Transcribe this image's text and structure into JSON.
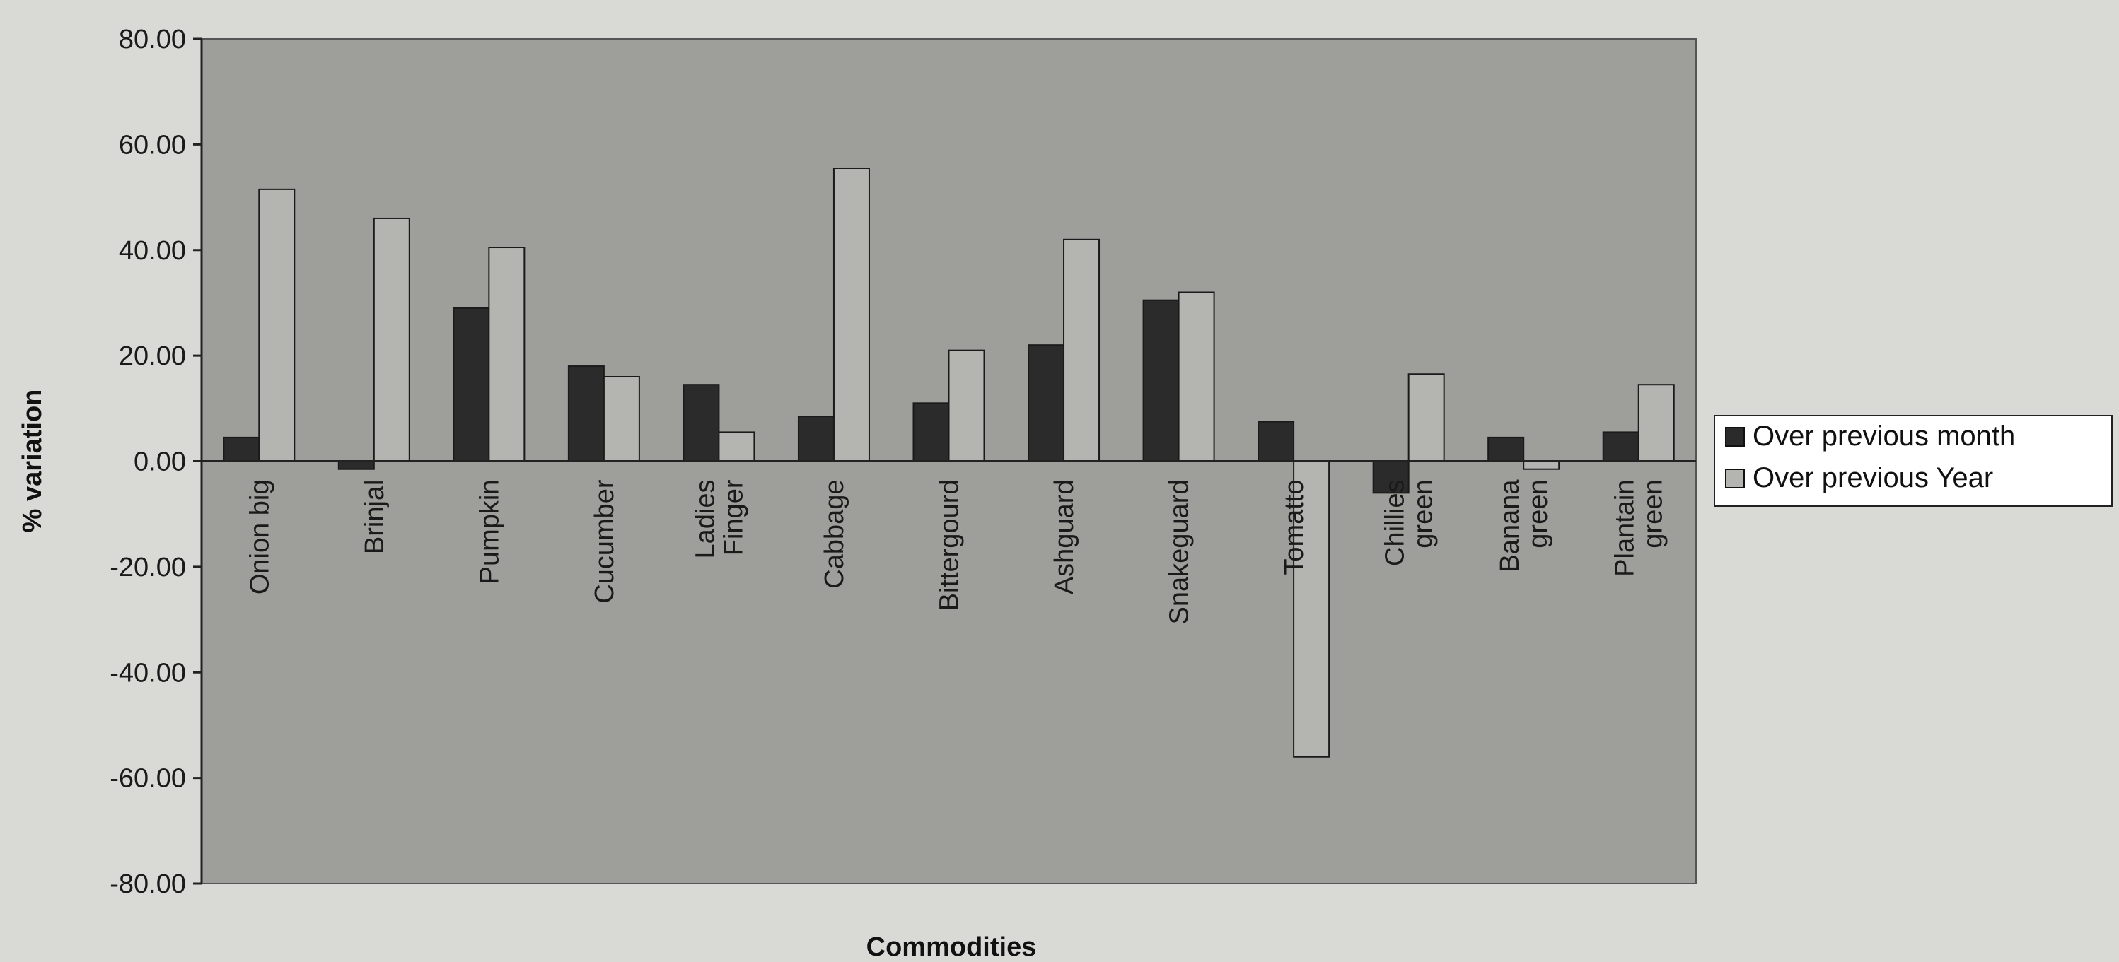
{
  "chart_data": {
    "type": "bar",
    "categories": [
      [
        "Onion big"
      ],
      [
        "Brinjal"
      ],
      [
        "Pumpkin"
      ],
      [
        "Cucumber"
      ],
      [
        "Ladies",
        "Finger"
      ],
      [
        "Cabbage"
      ],
      [
        "Bittergourd"
      ],
      [
        "Ashguard"
      ],
      [
        "Snakeguard"
      ],
      [
        "Tomatto"
      ],
      [
        "Chillies",
        "green"
      ],
      [
        "Banana",
        "green"
      ],
      [
        "Plantain",
        "green"
      ]
    ],
    "series": [
      {
        "name": "Over previous month",
        "color": "#2b2b2b",
        "values": [
          4.5,
          -1.5,
          29.0,
          18.0,
          14.5,
          8.5,
          11.0,
          22.0,
          30.5,
          7.5,
          -6.0,
          4.5,
          5.5
        ]
      },
      {
        "name": "Over previous Year",
        "color": "#b4b4b0",
        "values": [
          51.5,
          46.0,
          40.5,
          16.0,
          5.5,
          55.5,
          21.0,
          42.0,
          32.0,
          -56.0,
          16.5,
          -1.5,
          14.5
        ]
      }
    ],
    "xlabel": "Commodities",
    "ylabel": "% variation",
    "ylim": [
      -80,
      80
    ],
    "yticks": [
      "80.00",
      "60.00",
      "40.00",
      "20.00",
      "0.00",
      "-20.00",
      "-40.00",
      "-60.00",
      "-80.00"
    ],
    "ytick_values": [
      80,
      60,
      40,
      20,
      0,
      -20,
      -40,
      -60,
      -80
    ],
    "plot_background": "#9e9e9b",
    "legend_position": "right",
    "grid": false
  }
}
